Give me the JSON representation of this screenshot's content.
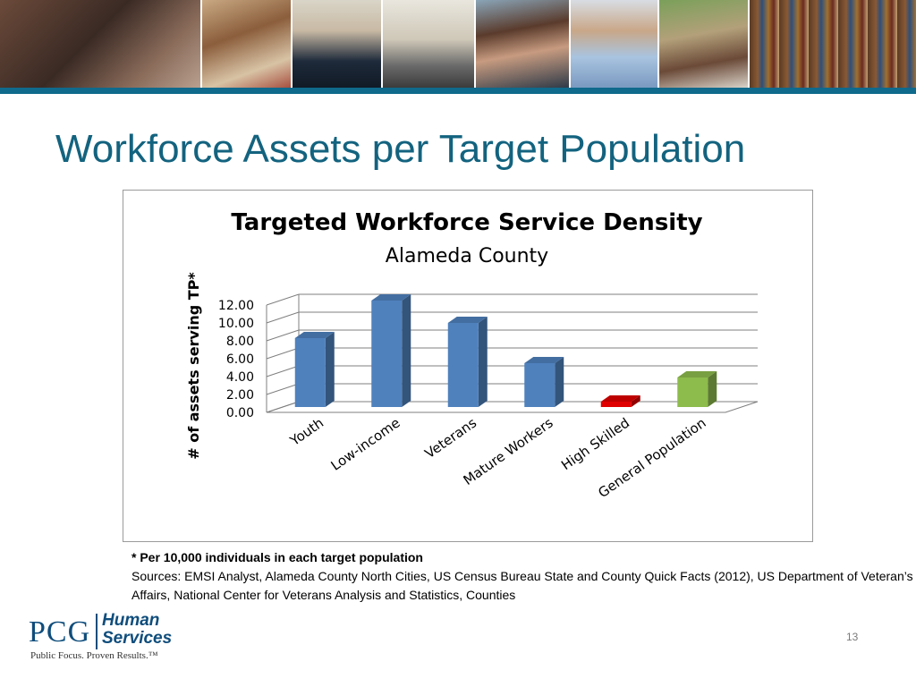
{
  "slide": {
    "title": "Workforce Assets per Target Population",
    "page_number": "13"
  },
  "footnote": {
    "note": "* Per 10,000 individuals in each target population",
    "sources": "Sources: EMSI Analyst, Alameda County North Cities, US Census Bureau State and County Quick Facts (2012), US Department of Veteran’s Affairs, National Center for Veterans Analysis and Statistics, Counties"
  },
  "logo": {
    "brand": "PCG",
    "division_line1": "Human",
    "division_line2": "Services",
    "tagline": "Public Focus. Proven Results.™"
  },
  "colors": {
    "title": "#13637f",
    "rule": "#0f6a8c",
    "bar_default": "#4f81bd",
    "bar_high_skilled": "#e00000",
    "bar_general_population": "#8dbb4c"
  },
  "chart_data": {
    "type": "bar",
    "style": "3d",
    "title": "Targeted Workforce Service Density",
    "subtitle": "Alameda County",
    "xlabel": "",
    "ylabel": "# of assets serving TP*",
    "categories": [
      "Youth",
      "Low-income",
      "Veterans",
      "Mature Workers",
      "High Skilled",
      "General Population"
    ],
    "values": [
      7.7,
      11.9,
      9.4,
      4.9,
      0.6,
      3.3
    ],
    "bar_colors": [
      "#4f81bd",
      "#4f81bd",
      "#4f81bd",
      "#4f81bd",
      "#e00000",
      "#8dbb4c"
    ],
    "y_ticks": [
      "0.00",
      "2.00",
      "4.00",
      "6.00",
      "8.00",
      "10.00",
      "12.00"
    ],
    "ylim": [
      0,
      12
    ],
    "grid": true,
    "legend": "none"
  }
}
